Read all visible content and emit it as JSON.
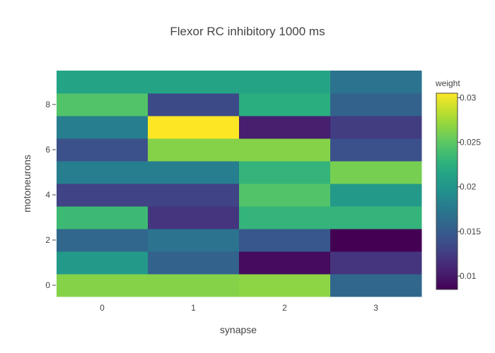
{
  "chart_data": {
    "type": "heatmap",
    "title": "Flexor RC inhibitory 1000 ms",
    "xlabel": "synapse",
    "ylabel": "motoneurons",
    "x": [
      0,
      1,
      2,
      3
    ],
    "y": [
      0,
      1,
      2,
      3,
      4,
      5,
      6,
      7,
      8,
      9
    ],
    "x_ticks": [
      "0",
      "1",
      "2",
      "3"
    ],
    "y_ticks": [
      "0",
      "2",
      "4",
      "6",
      "8"
    ],
    "z": [
      [
        0.0265,
        0.0265,
        0.0268,
        0.016
      ],
      [
        0.0205,
        0.0155,
        0.0092,
        0.012
      ],
      [
        0.016,
        0.017,
        0.0145,
        0.0085
      ],
      [
        0.0235,
        0.012,
        0.023,
        0.023
      ],
      [
        0.013,
        0.013,
        0.0245,
        0.0205
      ],
      [
        0.018,
        0.018,
        0.023,
        0.026
      ],
      [
        0.014,
        0.0265,
        0.0265,
        0.014
      ],
      [
        0.018,
        0.0305,
        0.0105,
        0.0125
      ],
      [
        0.0245,
        0.0135,
        0.0225,
        0.0155
      ],
      [
        0.0215,
        0.0215,
        0.0215,
        0.017
      ]
    ],
    "colorbar": {
      "title": "weight",
      "zmin": 0.0085,
      "zmax": 0.0305,
      "ticks": [
        0.01,
        0.015,
        0.02,
        0.025,
        0.03
      ],
      "tick_labels": [
        "0.01",
        "0.015",
        "0.02",
        "0.025",
        "0.03"
      ]
    },
    "colorscale": "Viridis",
    "grid": false
  }
}
